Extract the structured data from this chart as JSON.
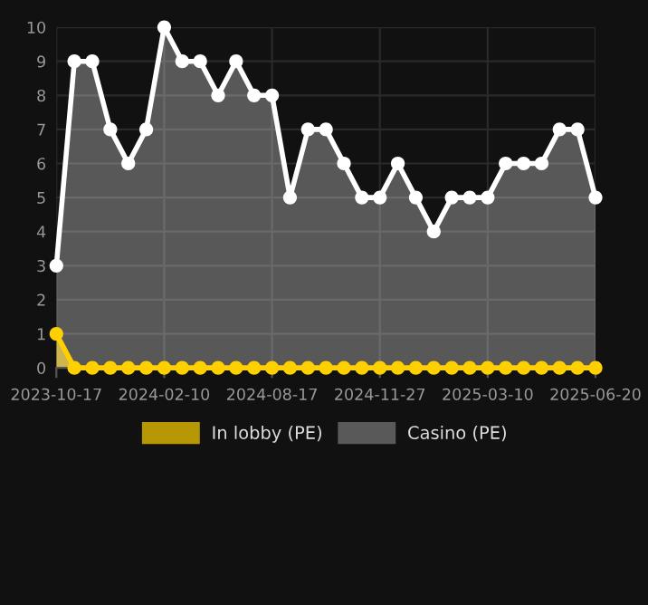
{
  "chart_data": {
    "type": "area",
    "categories": [
      "2023-10-17",
      null,
      null,
      null,
      null,
      null,
      "2024-02-10",
      null,
      null,
      null,
      null,
      null,
      "2024-08-17",
      null,
      null,
      null,
      null,
      null,
      "2024-11-27",
      null,
      null,
      null,
      null,
      null,
      "2025-03-10",
      null,
      null,
      null,
      null,
      null,
      "2025-06-20"
    ],
    "series": [
      {
        "name": "In lobby (PE)",
        "color": "#ffd000",
        "values": [
          1,
          0,
          0,
          0,
          0,
          0,
          0,
          0,
          0,
          0,
          0,
          0,
          0,
          0,
          0,
          0,
          0,
          0,
          0,
          0,
          0,
          0,
          0,
          0,
          0,
          0,
          0,
          0,
          0,
          0,
          0
        ]
      },
      {
        "name": "Casino (PE)",
        "color": "#ffffff",
        "values": [
          3,
          9,
          9,
          7,
          6,
          7,
          10,
          9,
          9,
          8,
          9,
          8,
          8,
          5,
          7,
          7,
          6,
          5,
          5,
          6,
          5,
          4,
          5,
          5,
          5,
          6,
          6,
          6,
          7,
          7,
          5
        ]
      }
    ],
    "ylim": [
      0,
      10
    ],
    "yticks": [
      0,
      1,
      2,
      3,
      4,
      5,
      6,
      7,
      8,
      9,
      10
    ],
    "grid": true,
    "legend": "bottom",
    "marker": "circle",
    "line_style": "solid"
  }
}
